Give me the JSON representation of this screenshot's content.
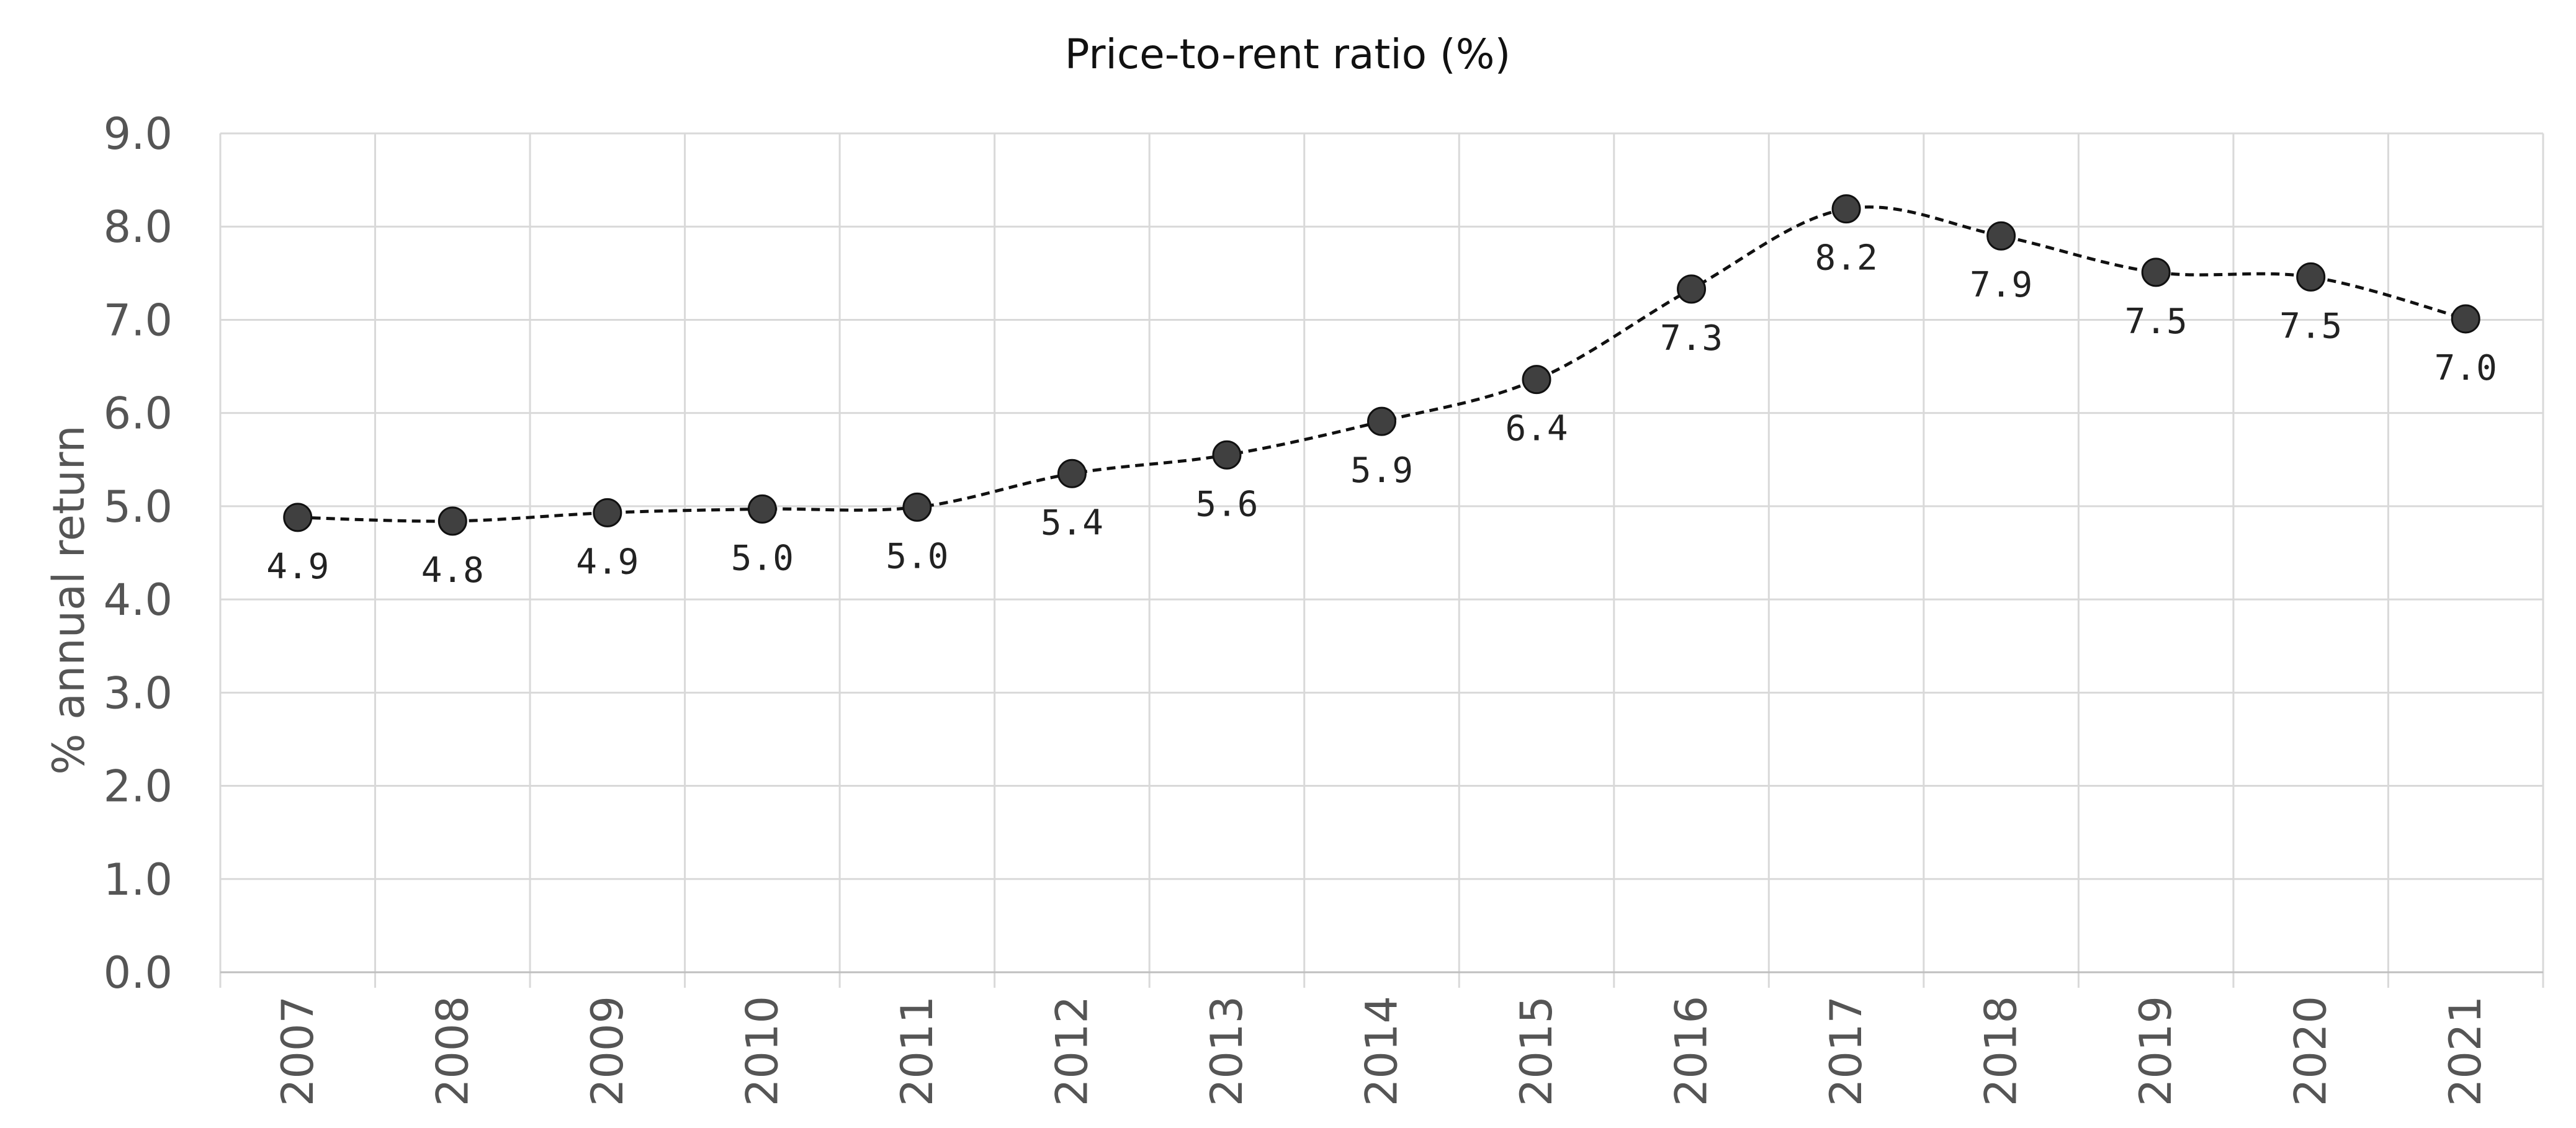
{
  "chart_data": {
    "type": "line",
    "title": "Price-to-rent ratio (%)",
    "xlabel": "",
    "ylabel": "% annual return",
    "categories": [
      "2007",
      "2008",
      "2009",
      "2010",
      "2011",
      "2012",
      "2013",
      "2014",
      "2015",
      "2016",
      "2017",
      "2018",
      "2019",
      "2020",
      "2021"
    ],
    "series": [
      {
        "values": [
          4.88,
          4.84,
          4.93,
          4.97,
          4.99,
          5.35,
          5.55,
          5.91,
          6.36,
          7.33,
          8.19,
          7.9,
          7.51,
          7.46,
          7.01
        ],
        "labels": [
          "4.9",
          "4.8",
          "4.9",
          "5.0",
          "5.0",
          "5.4",
          "5.6",
          "5.9",
          "6.4",
          "7.3",
          "8.2",
          "7.9",
          "7.5",
          "7.5",
          "7.0"
        ],
        "color": "#404040"
      }
    ],
    "ylim": [
      0,
      9
    ],
    "yticks": [
      "0.0",
      "1.0",
      "2.0",
      "3.0",
      "4.0",
      "5.0",
      "6.0",
      "7.0",
      "8.0",
      "9.0"
    ],
    "grid": true,
    "legend": "none",
    "line_style": "dashed smooth",
    "data_label_position": "below"
  }
}
